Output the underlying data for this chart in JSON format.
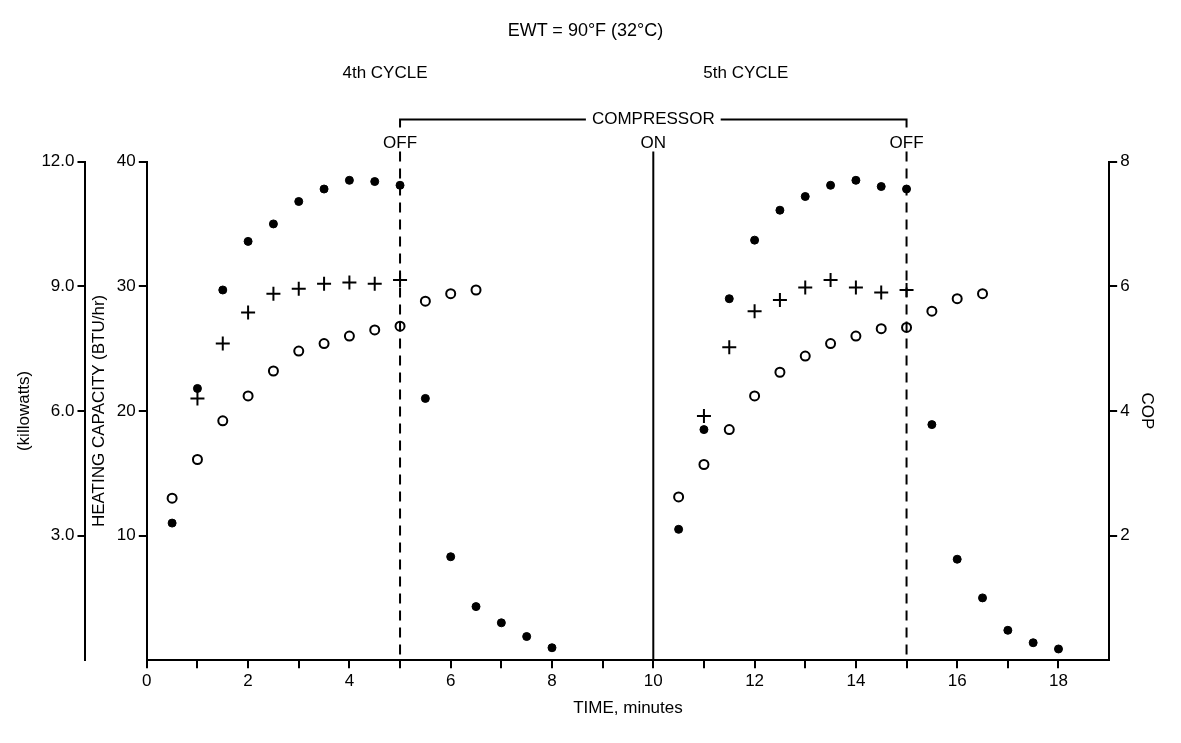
{
  "chart_data": {
    "type": "scatter",
    "title": "EWT = 90°F (32°C)",
    "xlabel": "TIME, minutes",
    "ylabel": "HEATING CAPACITY (BTU/hr)",
    "y2label": "COP",
    "y3label": "(killowatts)",
    "annotations": [
      "4th CYCLE",
      "5th CYCLE",
      "COMPRESSOR"
    ],
    "xlim": [
      0,
      19
    ],
    "xticks": [
      0,
      {
        "value": 1,
        "label": null
      },
      2,
      {
        "value": 3,
        "label": null
      },
      4,
      {
        "value": 5,
        "label": null
      },
      6,
      {
        "value": 7,
        "label": null
      },
      8,
      {
        "value": 9,
        "label": null
      },
      10,
      {
        "value": 11,
        "label": null
      },
      12,
      {
        "value": 13,
        "label": null
      },
      14,
      {
        "value": 15,
        "label": null
      },
      16,
      {
        "value": 17,
        "label": null
      },
      18
    ],
    "ylim": [
      0,
      40
    ],
    "yticks": [
      10,
      20,
      30,
      40
    ],
    "y2lim": [
      0,
      8
    ],
    "y2ticks": [
      2,
      4,
      6,
      8
    ],
    "y3lim": [
      0,
      12
    ],
    "y3ticks": [
      {
        "value": 3,
        "label": "3.0"
      },
      {
        "value": 6,
        "label": "6.0"
      },
      {
        "value": 9,
        "label": "9.0"
      },
      {
        "value": 12,
        "label": "12.0"
      }
    ],
    "grid": false,
    "legend": false,
    "ref_lines": [
      {
        "axis": "x",
        "value": 5,
        "label": "OFF",
        "line_style": "dashed"
      },
      {
        "axis": "x",
        "value": 10,
        "label": "ON",
        "line_style": "solid"
      },
      {
        "axis": "x",
        "value": 15,
        "label": "OFF",
        "line_style": "dashed"
      }
    ],
    "series": [
      {
        "color": "#000000",
        "marker": "circle",
        "x": [
          0.5,
          1,
          1.5,
          2,
          2.5,
          3,
          3.5,
          4,
          4.5,
          5,
          5.5,
          6,
          6.5,
          7,
          7.5,
          8,
          10.5,
          11,
          11.5,
          12,
          12.5,
          13,
          13.5,
          14,
          14.5,
          15,
          15.5,
          16,
          16.5,
          17,
          17.5,
          18
        ],
        "values": [
          11.0,
          21.8,
          29.7,
          33.6,
          35.0,
          36.8,
          37.8,
          38.5,
          38.4,
          38.1,
          21.0,
          8.3,
          4.3,
          3.0,
          1.9,
          1.0,
          10.5,
          18.5,
          29.0,
          33.7,
          36.1,
          37.2,
          38.1,
          38.5,
          38.0,
          37.8,
          18.9,
          8.1,
          5.0,
          2.4,
          1.4,
          0.9
        ]
      },
      {
        "color": "#000000",
        "marker": "cross",
        "x": [
          1,
          1.5,
          2,
          2.5,
          3,
          3.5,
          4,
          4.5,
          5,
          11,
          11.5,
          12,
          12.5,
          13,
          13.5,
          14,
          14.5,
          15
        ],
        "values": [
          21.0,
          25.4,
          27.9,
          29.4,
          29.8,
          30.2,
          30.3,
          30.2,
          30.5,
          19.6,
          25.1,
          28.0,
          28.9,
          29.9,
          30.5,
          29.9,
          29.5,
          29.7
        ]
      },
      {
        "color": "#000000",
        "marker": "circle",
        "x": [
          0.5,
          1,
          1.5,
          2,
          2.5,
          3,
          3.5,
          4,
          4.5,
          5,
          5.5,
          6,
          6.5,
          10.5,
          11,
          11.5,
          12,
          12.5,
          13,
          13.5,
          14,
          14.5,
          15,
          15.5,
          16,
          16.5
        ],
        "values": [
          13.0,
          16.1,
          19.2,
          21.2,
          23.2,
          24.8,
          25.4,
          26.0,
          26.5,
          26.8,
          28.8,
          29.4,
          29.7,
          13.1,
          15.7,
          18.5,
          21.2,
          23.1,
          24.4,
          25.4,
          26.0,
          26.6,
          26.7,
          28.0,
          29.0,
          29.4
        ]
      }
    ]
  }
}
